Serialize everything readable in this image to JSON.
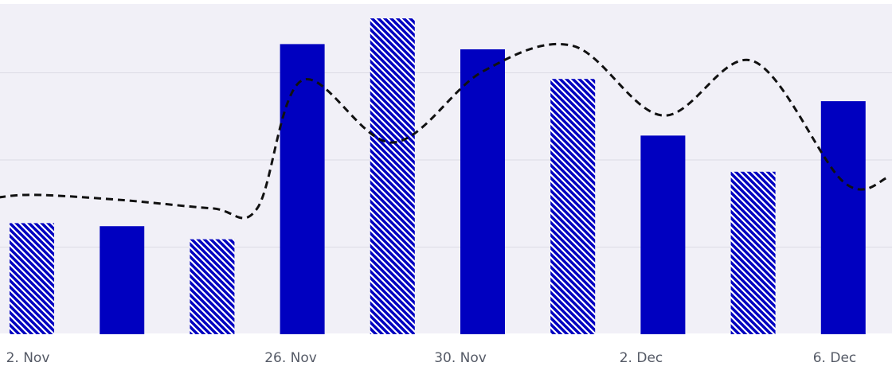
{
  "chart_data": {
    "type": "bar",
    "title": "",
    "xlabel": "",
    "ylabel": "",
    "x_tick_labels": [
      "2. Nov",
      "26. Nov",
      "30. Nov",
      "2. Dec",
      "6. Dec"
    ],
    "series": [
      {
        "type": "bar",
        "color": "#0000c0",
        "values": [
          25.5,
          24.8,
          21.8,
          66.6,
          72.5,
          65.4,
          58.6,
          45.6,
          37.3,
          53.5
        ],
        "patterns": [
          "hatched",
          "solid",
          "hatched",
          "solid",
          "hatched",
          "solid",
          "hatched",
          "solid",
          "hatched",
          "solid"
        ]
      },
      {
        "type": "line",
        "style": "dashed",
        "color": "#111111",
        "x": [
          -0.5,
          0.0,
          1.0,
          2.0,
          2.5,
          3.0,
          4.0,
          5.0,
          6.0,
          7.0,
          8.0,
          9.0,
          9.5
        ],
        "values": [
          31.0,
          32.0,
          30.8,
          28.9,
          28.9,
          58.3,
          44.0,
          60.3,
          66.2,
          50.2,
          62.7,
          35.0,
          36.0
        ]
      }
    ],
    "y_range": [
      0,
      78
    ],
    "y_gridlines": [
      0,
      20,
      40,
      60
    ],
    "grid": true,
    "legend": "none",
    "plot_background": "#f1f0f7",
    "bar_color": "#0000c0",
    "hatch_color": "#ffffff"
  }
}
